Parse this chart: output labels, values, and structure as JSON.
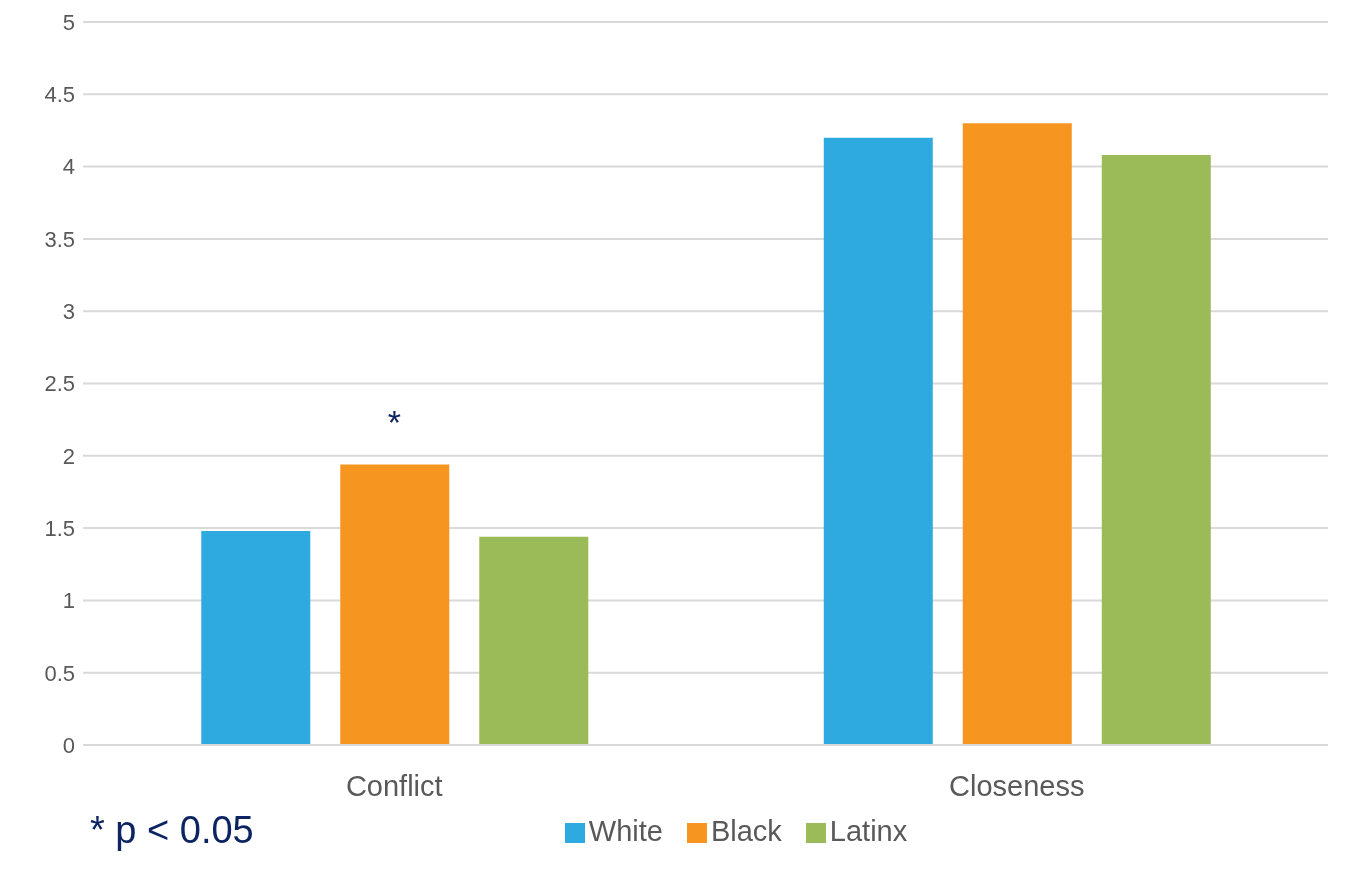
{
  "chart_data": {
    "type": "bar",
    "categories": [
      "Conflict",
      "Closeness"
    ],
    "series": [
      {
        "name": "White",
        "color": "#2eaae1",
        "values": [
          1.48,
          4.2
        ]
      },
      {
        "name": "Black",
        "color": "#f6951f",
        "values": [
          1.94,
          4.3
        ]
      },
      {
        "name": "Latinx",
        "color": "#9bbb59",
        "values": [
          1.44,
          4.08
        ]
      }
    ],
    "ylim": [
      0,
      5
    ],
    "yticks": [
      0,
      0.5,
      1,
      1.5,
      2,
      2.5,
      3,
      3.5,
      4,
      4.5,
      5
    ],
    "grid": "y",
    "legend": "bottom",
    "annotations": [
      {
        "text": "*",
        "x": "Conflict",
        "y": 1.94
      },
      "* p < 0.05"
    ]
  }
}
